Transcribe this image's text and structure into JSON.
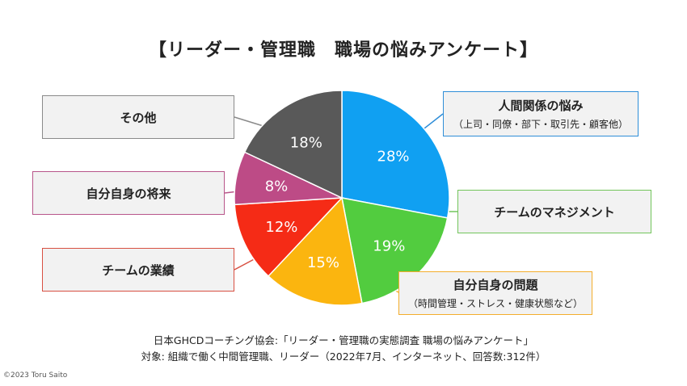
{
  "title": "【リーダー・管理職　職場の悩みアンケート】",
  "chart_data": {
    "type": "pie",
    "title": "【リーダー・管理職　職場の悩みアンケート】",
    "slices": [
      {
        "label": "人間関係の悩み",
        "sublabel": "（上司・同僚・部下・取引先・顧客他）",
        "value": 28,
        "display": "28%",
        "color": "#10a0f2"
      },
      {
        "label": "チームのマネジメント",
        "sublabel": "",
        "value": 19,
        "display": "19%",
        "color": "#52cc3f"
      },
      {
        "label": "自分自身の問題",
        "sublabel": "（時間管理・ストレス・健康状態など）",
        "value": 15,
        "display": "15%",
        "color": "#fbb50f"
      },
      {
        "label": "チームの業績",
        "sublabel": "",
        "value": 12,
        "display": "12%",
        "color": "#f52b16"
      },
      {
        "label": "自分自身の将来",
        "sublabel": "",
        "value": 8,
        "display": "8%",
        "color": "#bd4b86"
      },
      {
        "label": "その他",
        "sublabel": "",
        "value": 18,
        "display": "18%",
        "color": "#595959"
      }
    ],
    "callout_colors": [
      "#2f8ed8",
      "#72c55b",
      "#f3ad2c",
      "#d85042",
      "#b8568a",
      "#8a8a8a"
    ]
  },
  "source": {
    "line1": "日本GHCDコーチング協会:「リーダー・管理職の実態調査 職場の悩みアンケート」",
    "line2": "対象: 組織で働く中間管理職、リーダー（2022年7月、インターネット、回答数:312件）"
  },
  "copyright": "©2023 Toru Saito"
}
